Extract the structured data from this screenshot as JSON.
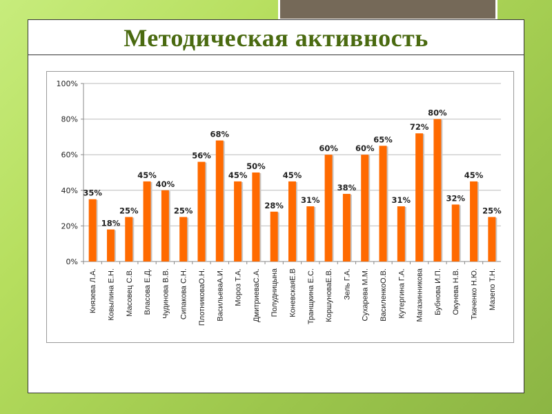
{
  "title": "Методическая активность",
  "colors": {
    "bar": "#ff6a00",
    "title": "#4a6a10"
  },
  "chart_data": {
    "type": "bar",
    "title": "",
    "xlabel": "",
    "ylabel": "",
    "ylim": [
      0,
      100
    ],
    "yticks": [
      "0%",
      "20%",
      "40%",
      "60%",
      "80%",
      "100%"
    ],
    "grid": true,
    "categories": [
      "Князева Л.А.",
      "Ковылина Е.Н.",
      "Масовец С.В.",
      "Власова Е.Д.",
      "Чудинова В.В.",
      "Сипакова С.Н.",
      "ПлотниковаО.Н.",
      "ВасильеваА.И.",
      "Мороз Т.А.",
      "ДмитриеваС.А.",
      "Полудницына",
      "КоневскаяЕ.В",
      "Транщкина Е.С.",
      "КоршуноваЕ.В.",
      "Зель Г.А.",
      "Сухарева М.М.",
      "ВасиленкоО.В.",
      "Кутергина Г.А.",
      "Магазинникова",
      "Бубнова И.П.",
      "Окунева Н.В.",
      "Ткаченко Н.Ю.",
      "Мазепо Т.Н."
    ],
    "values": [
      35,
      18,
      25,
      45,
      40,
      25,
      56,
      68,
      45,
      50,
      28,
      45,
      31,
      60,
      38,
      60,
      65,
      31,
      72,
      80,
      32,
      45,
      25
    ],
    "labels": [
      "35%",
      "18%",
      "25%",
      "45%",
      "40%",
      "25%",
      "56%",
      "68%",
      "45%",
      "50%",
      "28%",
      "45%",
      "31%",
      "60%",
      "38%",
      "60%",
      "65%",
      "31%",
      "72%",
      "80%",
      "32%",
      "45%",
      "25%"
    ]
  }
}
